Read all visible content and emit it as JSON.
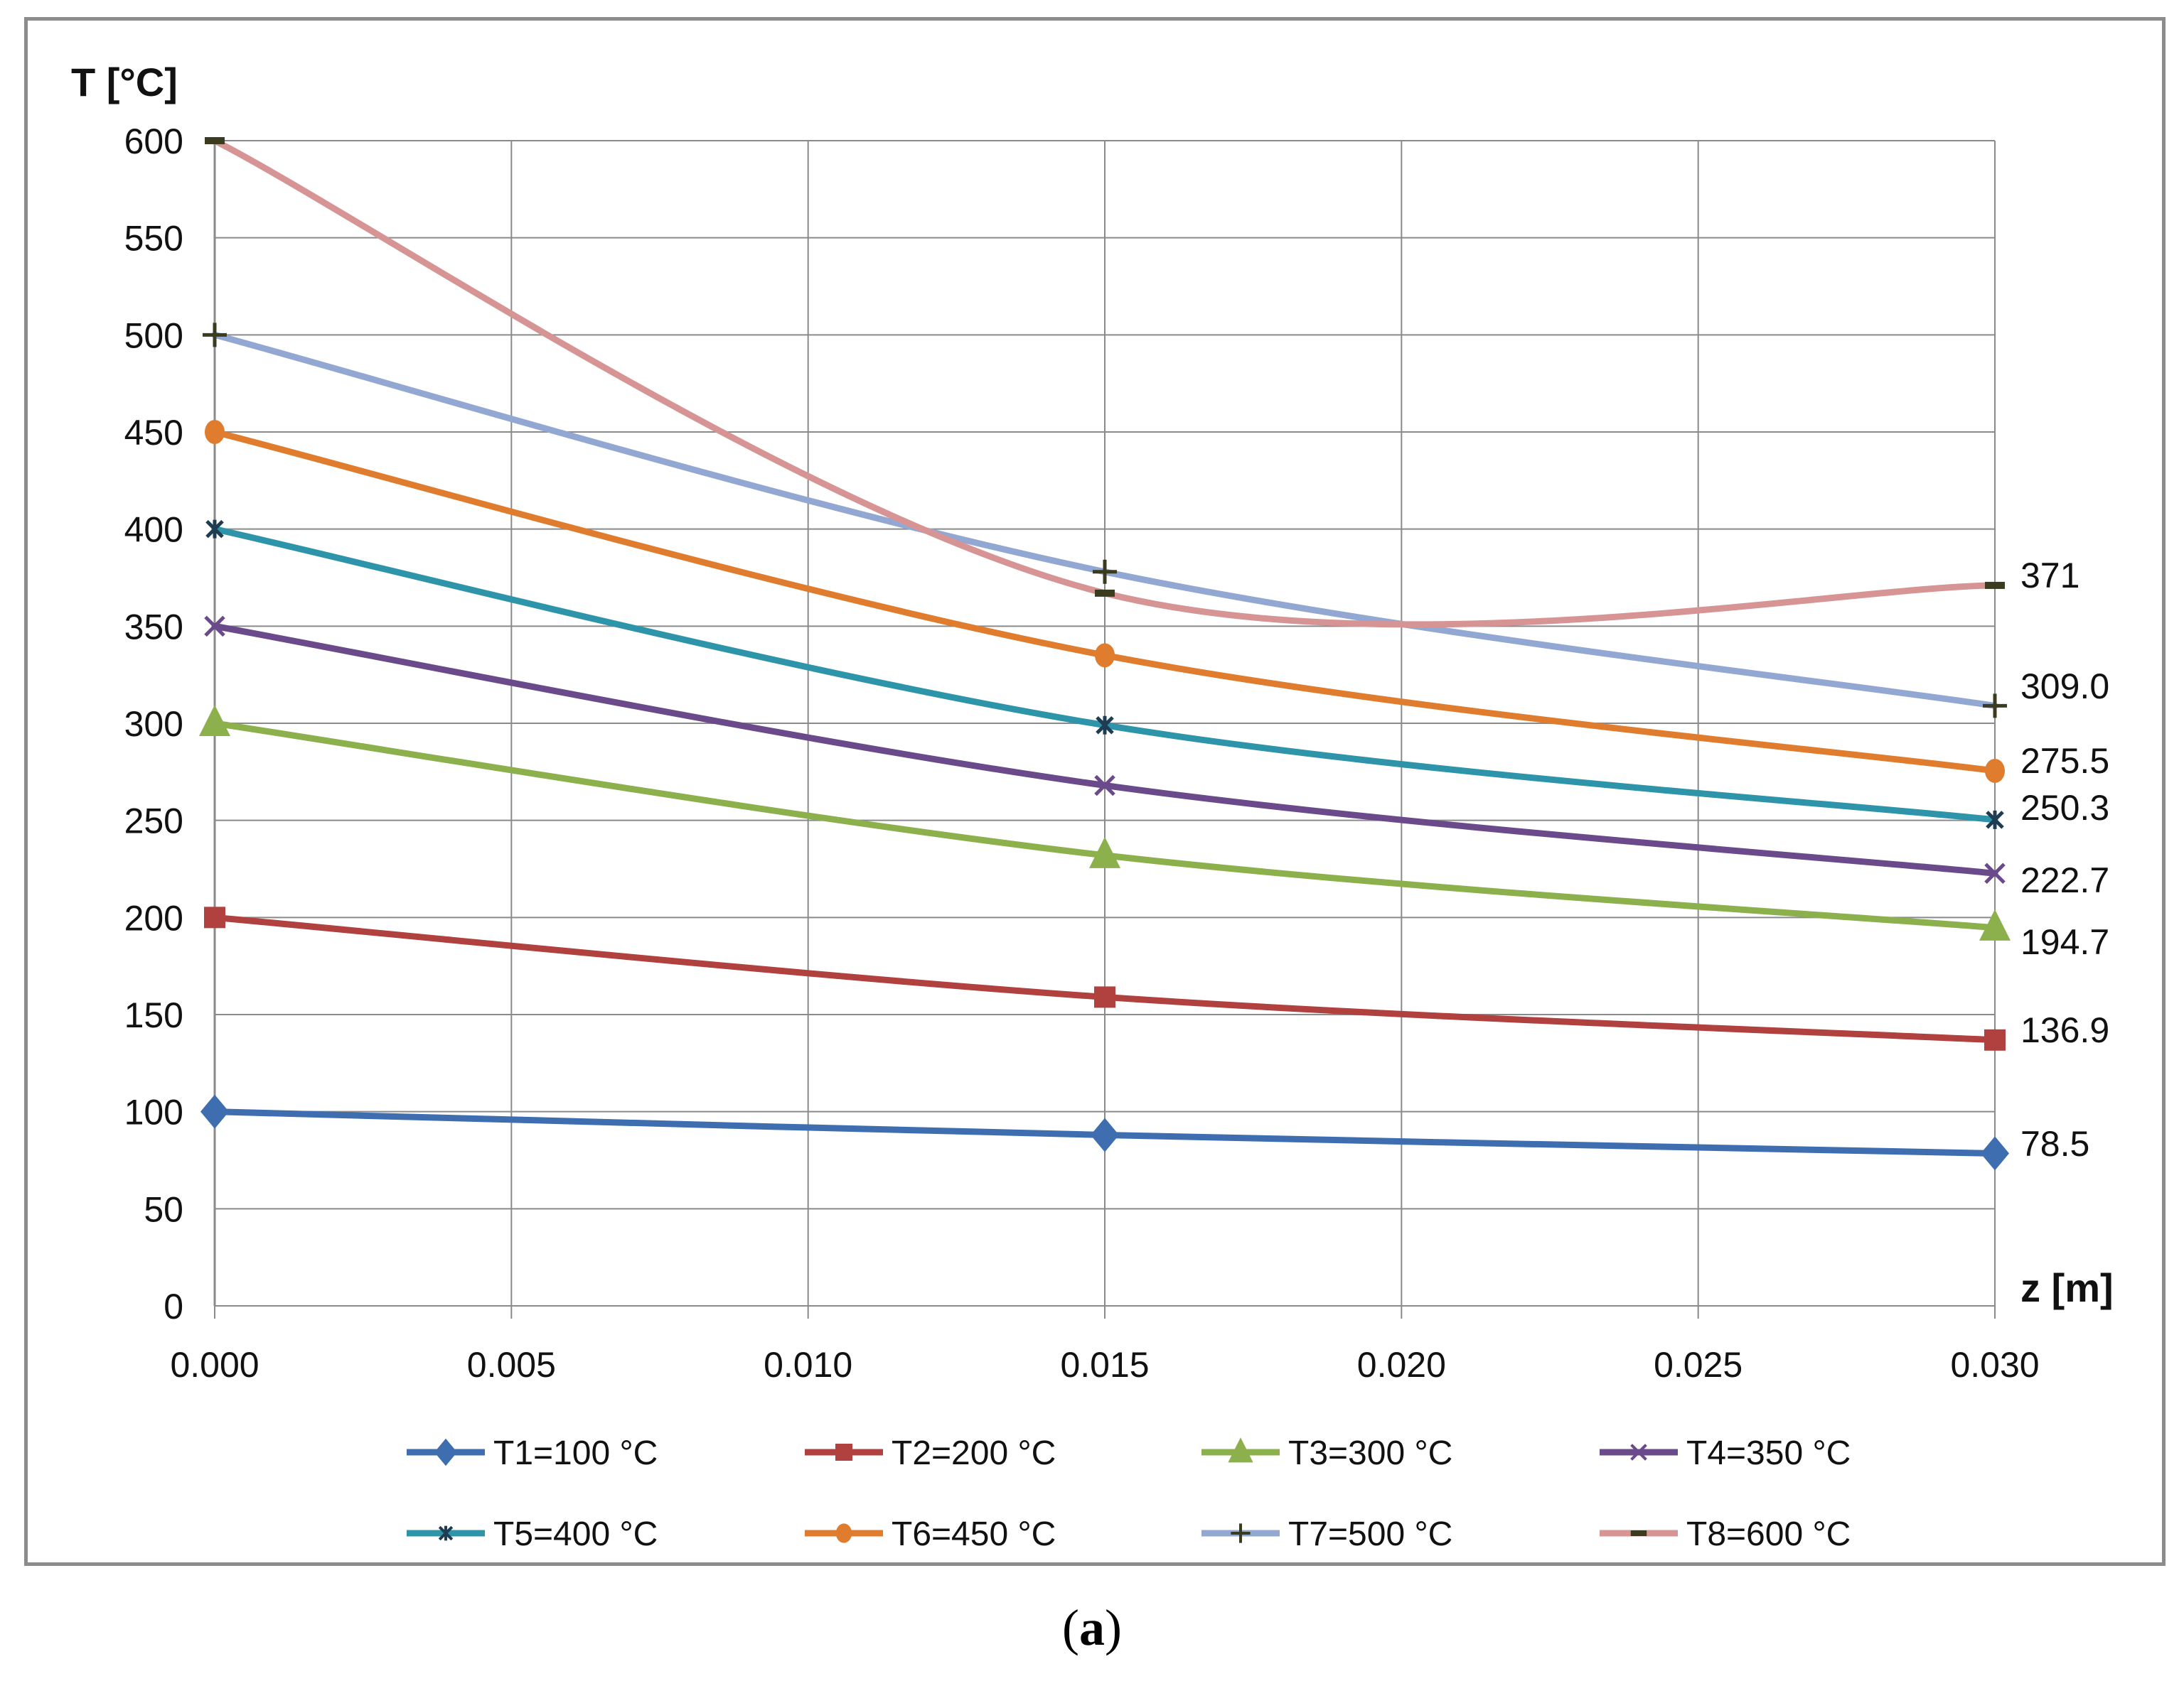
{
  "chart_data": {
    "type": "line",
    "title": "",
    "ylabel": "T [°C]",
    "xlabel": "z [m]",
    "xlim": [
      0,
      0.03
    ],
    "ylim": [
      0,
      600
    ],
    "xticks": [
      "0.000",
      "0.005",
      "0.010",
      "0.015",
      "0.020",
      "0.025",
      "0.030"
    ],
    "yticks": [
      "0",
      "50",
      "100",
      "150",
      "200",
      "250",
      "300",
      "350",
      "400",
      "450",
      "500",
      "550",
      "600"
    ],
    "grid": true,
    "legend_position": "bottom",
    "x": [
      0.0,
      0.015,
      0.03
    ],
    "series": [
      {
        "name": "T1=100 °C",
        "values": [
          100,
          88,
          78.5
        ],
        "end_label": "78.5",
        "color": "#3e6eb0",
        "marker": "diamond"
      },
      {
        "name": "T2=200 °C",
        "values": [
          200,
          159,
          136.9
        ],
        "end_label": "136.9",
        "color": "#b0413e",
        "marker": "square"
      },
      {
        "name": "T3=300 °C",
        "values": [
          300,
          232,
          194.7
        ],
        "end_label": "194.7",
        "color": "#8cb04c",
        "marker": "triangle"
      },
      {
        "name": "T4=350 °C",
        "values": [
          350,
          268,
          222.7
        ],
        "end_label": "222.7",
        "color": "#6b4a8c",
        "marker": "x"
      },
      {
        "name": "T5=400 °C",
        "values": [
          400,
          299,
          250.3
        ],
        "end_label": "250.3",
        "color": "#2e94aa",
        "marker": "star"
      },
      {
        "name": "T6=450 °C",
        "values": [
          450,
          335,
          275.5
        ],
        "end_label": "275.5",
        "color": "#e07c2e",
        "marker": "circle"
      },
      {
        "name": "T7=500 °C",
        "values": [
          500,
          378,
          309.0
        ],
        "end_label": "309.0",
        "color": "#92a8d2",
        "marker": "plus"
      },
      {
        "name": "T8=600 °C",
        "values": [
          600,
          367,
          371
        ],
        "end_label": "371",
        "color": "#d69594",
        "marker": "dash"
      }
    ]
  },
  "caption": {
    "prefix": "(",
    "letter": "a",
    "suffix": ")"
  }
}
